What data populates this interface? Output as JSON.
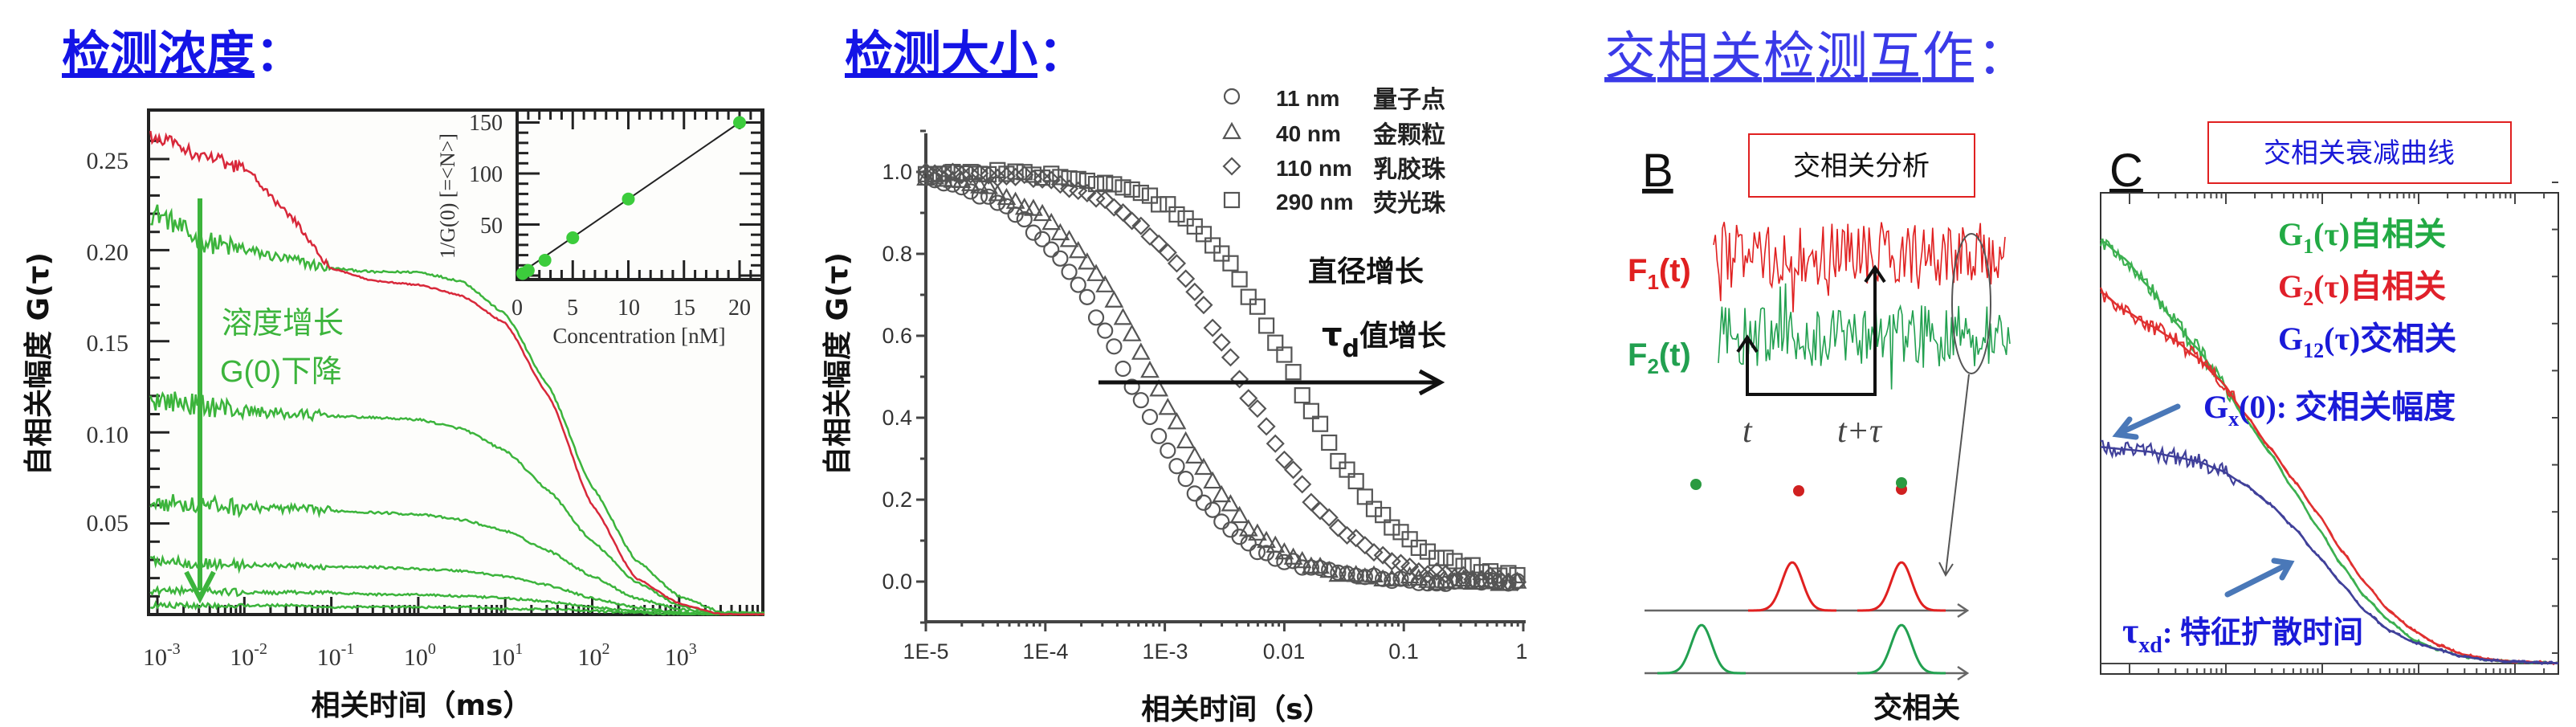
{
  "titles": {
    "concentration": "检测浓度",
    "size": "检测大小",
    "cross": "交相关检测互作",
    "colon": "："
  },
  "colors": {
    "title_blue": "#1414e6",
    "title3_blue": "#3a3ae8",
    "green": "#3cb43c",
    "red": "#e0202a",
    "blue": "#3a3aa0",
    "arrow_blue": "#4a78b8",
    "label_blue": "#1a1ad8"
  },
  "panel1": {
    "ylabel": "自相关幅度 G(τ)",
    "xlabel": "相关时间（ms）",
    "annotation_line1": "溶度增长",
    "annotation_line2": "G(0)下降",
    "ytick_labels": [
      "0.05",
      "0.10",
      "0.15",
      "0.20",
      "0.25"
    ],
    "xtick_labels": [
      {
        "base": "10",
        "exp": "-3"
      },
      {
        "base": "10",
        "exp": "-2"
      },
      {
        "base": "10",
        "exp": "-1"
      },
      {
        "base": "10",
        "exp": "0"
      },
      {
        "base": "10",
        "exp": "1"
      },
      {
        "base": "10",
        "exp": "2"
      },
      {
        "base": "10",
        "exp": "3"
      }
    ],
    "inset": {
      "ylabel": "1/G(0) [=<N>]",
      "xlabel": "Concentration [nM]",
      "xtick_labels": [
        "0",
        "5",
        "10",
        "15",
        "20"
      ],
      "ytick_labels": [
        "50",
        "100",
        "150"
      ]
    }
  },
  "panel2": {
    "ylabel": "自相关幅度 G(τ)",
    "xlabel": "相关时间（s）",
    "ytick_labels": [
      "0.0",
      "0.2",
      "0.4",
      "0.6",
      "0.8",
      "1.0"
    ],
    "xtick_labels": [
      "1E-5",
      "1E-4",
      "1E-3",
      "0.01",
      "0.1",
      "1"
    ],
    "legend": [
      {
        "symbol": "circle",
        "size": "11 nm",
        "name": "量子点"
      },
      {
        "symbol": "triangle",
        "size": "40 nm",
        "name": "金颗粒"
      },
      {
        "symbol": "diamond",
        "size": "110 nm",
        "name": "乳胶珠"
      },
      {
        "symbol": "square",
        "size": "290 nm",
        "name": "荧光珠"
      }
    ],
    "annotation_line1": "直径增长",
    "annotation_tau": "τ",
    "annotation_sub": "d",
    "annotation_line2": "值增长"
  },
  "panelB": {
    "letter": "B",
    "box_label": "交相关分析",
    "f1": {
      "main": "F",
      "sub": "1",
      "rest": "(t)"
    },
    "f2": {
      "main": "F",
      "sub": "2",
      "rest": "(t)"
    },
    "t_label": "t",
    "t_tau_label": "t+τ",
    "bottom_label": "交相关"
  },
  "panelC": {
    "letter": "C",
    "box_label": "交相关衰减曲线",
    "legend": [
      {
        "main": "G",
        "sub": "1",
        "rest": "(τ)自相关",
        "color": "#22aa44"
      },
      {
        "main": "G",
        "sub": "2",
        "rest": "(τ)自相关",
        "color": "#e0202a"
      },
      {
        "main": "G",
        "sub": "12",
        "rest": "(τ)交相关",
        "color": "#1a1ad8"
      }
    ],
    "amp_label": {
      "main": "G",
      "sub": "x",
      "rest": "(0): 交相关幅度"
    },
    "tau_label": {
      "main": "τ",
      "sub": "xd",
      "rest": ": 特征扩散时间"
    }
  },
  "chart_data": [
    {
      "type": "line",
      "title": "检测浓度",
      "xlabel": "相关时间（ms）",
      "ylabel": "自相关幅度 G(τ)",
      "xscale": "log",
      "xlim_log10": [
        -3.1,
        4
      ],
      "ylim": [
        0,
        0.275
      ],
      "log10_x": [
        -3,
        -2.5,
        -2,
        -1.5,
        -1,
        -0.5,
        0,
        0.5,
        1,
        1.5,
        2,
        2.5,
        3,
        3.5
      ],
      "series": [
        {
          "name": "red",
          "color": "#d8283a",
          "values": [
            0.262,
            0.252,
            0.245,
            0.22,
            0.19,
            0.183,
            0.181,
            0.175,
            0.16,
            0.12,
            0.06,
            0.02,
            0.006,
            0
          ]
        },
        {
          "name": "green-1",
          "color": "#3cb43c",
          "values": [
            0.22,
            0.205,
            0.2,
            0.195,
            0.19,
            0.188,
            0.188,
            0.183,
            0.165,
            0.125,
            0.07,
            0.03,
            0.01,
            0.001
          ]
        },
        {
          "name": "green-2",
          "color": "#3cb43c",
          "values": [
            0.118,
            0.115,
            0.112,
            0.11,
            0.109,
            0.108,
            0.107,
            0.102,
            0.09,
            0.068,
            0.04,
            0.018,
            0.005,
            0
          ]
        },
        {
          "name": "green-3",
          "color": "#3cb43c",
          "values": [
            0.062,
            0.06,
            0.059,
            0.058,
            0.057,
            0.056,
            0.055,
            0.052,
            0.046,
            0.035,
            0.021,
            0.009,
            0.003,
            0
          ]
        },
        {
          "name": "green-4",
          "color": "#3cb43c",
          "values": [
            0.03,
            0.028,
            0.027,
            0.027,
            0.026,
            0.026,
            0.025,
            0.024,
            0.021,
            0.016,
            0.009,
            0.004,
            0.001,
            0
          ]
        },
        {
          "name": "green-5",
          "color": "#3cb43c",
          "values": [
            0.013,
            0.013,
            0.012,
            0.012,
            0.012,
            0.011,
            0.011,
            0.01,
            0.009,
            0.007,
            0.004,
            0.002,
            0.001,
            0
          ]
        },
        {
          "name": "green-6",
          "color": "#3cb43c",
          "values": [
            0.005,
            0.005,
            0.005,
            0.005,
            0.004,
            0.004,
            0.004,
            0.004,
            0.003,
            0.003,
            0.002,
            0.001,
            0,
            0
          ]
        }
      ],
      "inset": {
        "type": "scatter",
        "x": [
          0.5,
          1,
          2.5,
          5,
          10,
          20
        ],
        "y": [
          2,
          5,
          15,
          37,
          75,
          150
        ],
        "fit_line": [
          [
            0,
            0
          ],
          [
            20,
            150
          ]
        ],
        "xlim": [
          0,
          22
        ],
        "ylim": [
          0,
          160
        ]
      }
    },
    {
      "type": "scatter",
      "title": "检测大小",
      "xlabel": "相关时间（s）",
      "ylabel": "自相关幅度 G(τ)",
      "xscale": "log",
      "xlim_log10": [
        -5,
        0
      ],
      "ylim": [
        -0.1,
        1.1
      ],
      "log10_x": [
        -5,
        -4.75,
        -4.5,
        -4.25,
        -4,
        -3.75,
        -3.5,
        -3.25,
        -3,
        -2.75,
        -2.5,
        -2.25,
        -2,
        -1.75,
        -1.5,
        -1.25,
        -1,
        -0.75,
        -0.5,
        -0.25,
        0
      ],
      "series": [
        {
          "name": "11 nm 量子点",
          "marker": "circle",
          "values": [
            0.98,
            0.97,
            0.94,
            0.9,
            0.83,
            0.74,
            0.61,
            0.47,
            0.33,
            0.22,
            0.14,
            0.08,
            0.05,
            0.03,
            0.02,
            0.01,
            0.005,
            0,
            0,
            0,
            0
          ]
        },
        {
          "name": "40 nm 金颗粒",
          "marker": "triangle",
          "values": [
            0.99,
            0.98,
            0.96,
            0.93,
            0.89,
            0.82,
            0.72,
            0.59,
            0.44,
            0.31,
            0.2,
            0.12,
            0.07,
            0.04,
            0.02,
            0.01,
            0.01,
            0,
            0,
            0,
            0
          ]
        },
        {
          "name": "110 nm 乳胶珠",
          "marker": "diamond",
          "values": [
            1,
            1,
            0.99,
            0.99,
            0.98,
            0.96,
            0.93,
            0.88,
            0.81,
            0.71,
            0.57,
            0.43,
            0.3,
            0.19,
            0.12,
            0.07,
            0.04,
            0.02,
            0.01,
            0.01,
            0
          ]
        },
        {
          "name": "290 nm 荧光珠",
          "marker": "square",
          "values": [
            1,
            1,
            1,
            1,
            0.99,
            0.99,
            0.97,
            0.96,
            0.92,
            0.87,
            0.79,
            0.68,
            0.55,
            0.4,
            0.28,
            0.18,
            0.11,
            0.06,
            0.04,
            0.02,
            0.01
          ]
        }
      ]
    },
    {
      "type": "line",
      "title": "交相关衰减曲线",
      "xscale": "log",
      "xlim_log10": [
        0,
        4.75
      ],
      "ylim": [
        0,
        1
      ],
      "log10_x": [
        0,
        0.25,
        0.5,
        0.75,
        1,
        1.25,
        1.5,
        1.75,
        2,
        2.25,
        2.5,
        2.75,
        3,
        3.25,
        3.5,
        3.75,
        4,
        4.25,
        4.5,
        4.75
      ],
      "series": [
        {
          "name": "G1(τ)自相关",
          "color": "#3cb050",
          "values": [
            0.9,
            0.86,
            0.8,
            0.73,
            0.67,
            0.6,
            0.52,
            0.45,
            0.37,
            0.29,
            0.21,
            0.14,
            0.09,
            0.05,
            0.03,
            0.015,
            0.008,
            0.004,
            0.002,
            0.001
          ]
        },
        {
          "name": "G2(τ)自相关",
          "color": "#e03030",
          "values": [
            0.79,
            0.75,
            0.72,
            0.69,
            0.65,
            0.6,
            0.53,
            0.46,
            0.39,
            0.32,
            0.24,
            0.17,
            0.11,
            0.07,
            0.04,
            0.02,
            0.01,
            0.005,
            0.003,
            0.001
          ]
        },
        {
          "name": "G12(τ)交相关",
          "color": "#40409a",
          "values": [
            0.46,
            0.455,
            0.45,
            0.44,
            0.43,
            0.41,
            0.38,
            0.34,
            0.29,
            0.23,
            0.17,
            0.11,
            0.07,
            0.045,
            0.03,
            0.015,
            0.008,
            0.004,
            0.002,
            0.001
          ]
        }
      ]
    }
  ]
}
